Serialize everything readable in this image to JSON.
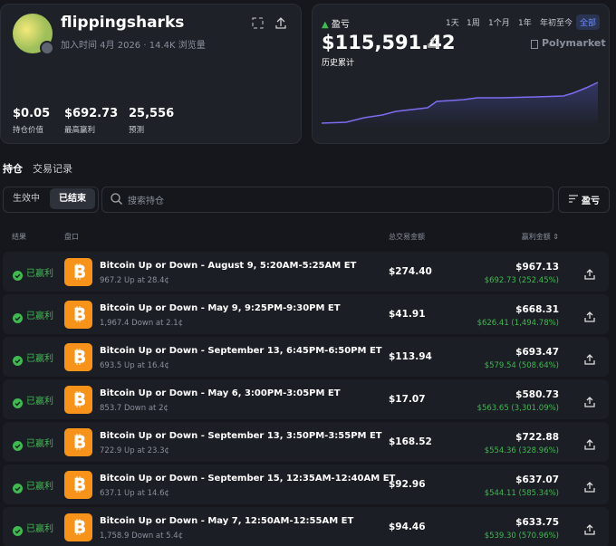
{
  "profile": {
    "name": "flippingsharks",
    "joined": "加入时间 4月 2026",
    "views": "14.4K 浏览量",
    "stats": [
      {
        "value": "$0.05",
        "label": "持仓价值"
      },
      {
        "value": "$692.73",
        "label": "最高赢利"
      },
      {
        "value": "25,556",
        "label": "预测"
      }
    ]
  },
  "pnl": {
    "label": "盈亏",
    "ranges": [
      "1天",
      "1周",
      "1个月",
      "1年",
      "年初至今",
      "全部"
    ],
    "value": "$115,591.42",
    "sublabel": "历史累计",
    "brand": "Polymarket"
  },
  "tabs": [
    "持仓",
    "交易记录"
  ],
  "filters": [
    "生效中",
    "已结束"
  ],
  "search_placeholder": "搜索持仓",
  "sort": "盈亏",
  "table": {
    "headers": [
      "结果",
      "盘口",
      "总交易金额",
      "赢利金额"
    ],
    "rows": [
      {
        "result": "已赢利",
        "title": "Bitcoin Up or Down - August 9, 5:20AM-5:25AM ET",
        "detail": "967.2 Up at 28.4¢",
        "total": "$274.40",
        "win": "$967.13",
        "profit": "$692.73 (252.45%)"
      },
      {
        "result": "已赢利",
        "title": "Bitcoin Up or Down - May 9, 9:25PM-9:30PM ET",
        "detail": "1,967.4 Down at 2.1¢",
        "total": "$41.91",
        "win": "$668.31",
        "profit": "$626.41 (1,494.78%)"
      },
      {
        "result": "已赢利",
        "title": "Bitcoin Up or Down - September 13, 6:45PM-6:50PM ET",
        "detail": "693.5 Up at 16.4¢",
        "total": "$113.94",
        "win": "$693.47",
        "profit": "$579.54 (508.64%)"
      },
      {
        "result": "已赢利",
        "title": "Bitcoin Up or Down - May 6, 3:00PM-3:05PM ET",
        "detail": "853.7 Down at 2¢",
        "total": "$17.07",
        "win": "$580.73",
        "profit": "$563.65 (3,301.09%)"
      },
      {
        "result": "已赢利",
        "title": "Bitcoin Up or Down - September 13, 3:50PM-3:55PM ET",
        "detail": "722.9 Up at 23.3¢",
        "total": "$168.52",
        "win": "$722.88",
        "profit": "$554.36 (328.96%)"
      },
      {
        "result": "已赢利",
        "title": "Bitcoin Up or Down - September 15, 12:35AM-12:40AM ET",
        "detail": "637.1 Up at 14.6¢",
        "total": "$92.96",
        "win": "$637.07",
        "profit": "$544.11 (585.34%)"
      },
      {
        "result": "已赢利",
        "title": "Bitcoin Up or Down - May 7, 12:50AM-12:55AM ET",
        "detail": "1,758.9 Down at 5.4¢",
        "total": "$94.46",
        "win": "$633.75",
        "profit": "$539.30 (570.96%)"
      }
    ]
  }
}
